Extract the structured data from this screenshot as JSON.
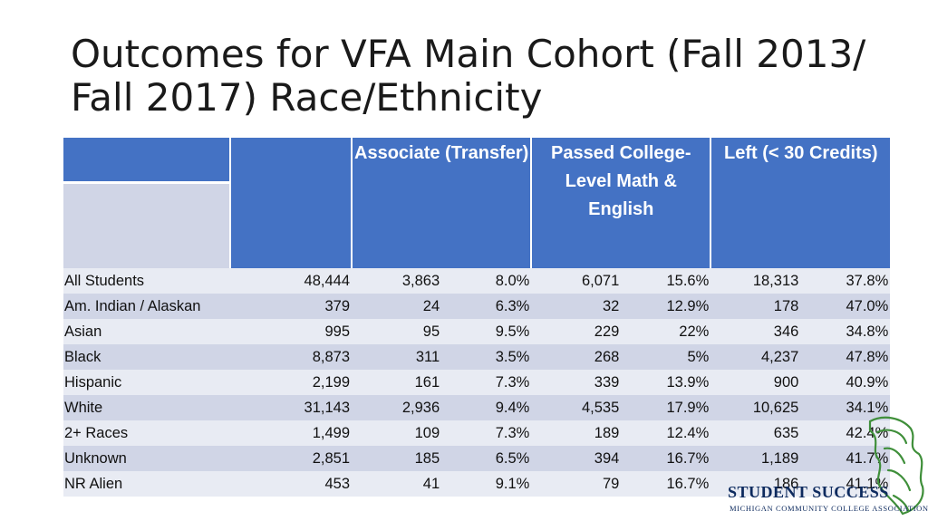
{
  "title": "Outcomes for VFA Main Cohort (Fall 2013/ Fall 2017) Race/Ethnicity",
  "table": {
    "headers": [
      "Associate (Transfer)",
      "Passed College-Level Math & English",
      "Left (< 30 Credits)"
    ],
    "rows": [
      {
        "label": "All Students",
        "cohort": "48,444",
        "assoc_n": "3,863",
        "assoc_pct": "8.0%",
        "math_n": "6,071",
        "math_pct": "15.6%",
        "left_n": "18,313",
        "left_pct": "37.8%"
      },
      {
        "label": "Am. Indian / Alaskan",
        "cohort": "379",
        "assoc_n": "24",
        "assoc_pct": "6.3%",
        "math_n": "32",
        "math_pct": "12.9%",
        "left_n": "178",
        "left_pct": "47.0%"
      },
      {
        "label": "Asian",
        "cohort": "995",
        "assoc_n": "95",
        "assoc_pct": "9.5%",
        "math_n": "229",
        "math_pct": "22%",
        "left_n": "346",
        "left_pct": "34.8%"
      },
      {
        "label": "Black",
        "cohort": "8,873",
        "assoc_n": "311",
        "assoc_pct": "3.5%",
        "math_n": "268",
        "math_pct": "5%",
        "left_n": "4,237",
        "left_pct": "47.8%"
      },
      {
        "label": "Hispanic",
        "cohort": "2,199",
        "assoc_n": "161",
        "assoc_pct": "7.3%",
        "math_n": "339",
        "math_pct": "13.9%",
        "left_n": "900",
        "left_pct": "40.9%"
      },
      {
        "label": "White",
        "cohort": "31,143",
        "assoc_n": "2,936",
        "assoc_pct": "9.4%",
        "math_n": "4,535",
        "math_pct": "17.9%",
        "left_n": "10,625",
        "left_pct": "34.1%"
      },
      {
        "label": "2+ Races",
        "cohort": "1,499",
        "assoc_n": "109",
        "assoc_pct": "7.3%",
        "math_n": "189",
        "math_pct": "12.4%",
        "left_n": "635",
        "left_pct": "42.4%"
      },
      {
        "label": "Unknown",
        "cohort": "2,851",
        "assoc_n": "185",
        "assoc_pct": "6.5%",
        "math_n": "394",
        "math_pct": "16.7%",
        "left_n": "1,189",
        "left_pct": "41.7%"
      },
      {
        "label": "NR Alien",
        "cohort": "453",
        "assoc_n": "41",
        "assoc_pct": "9.1%",
        "math_n": "79",
        "math_pct": "16.7%",
        "left_n": "186",
        "left_pct": "41.1%"
      }
    ]
  },
  "logo": {
    "name": "michigan-student-success-logo",
    "visible_text": "STUDENT SUCCESS",
    "subtitle": "MICHIGAN COMMUNITY COLLEGE ASSOCIATION",
    "accent_color": "#3f8f3a",
    "text_color": "#0d2a5e"
  },
  "colors": {
    "header_blue": "#4472c4",
    "row_light": "#e8ebf3",
    "row_dark": "#d0d5e6"
  }
}
